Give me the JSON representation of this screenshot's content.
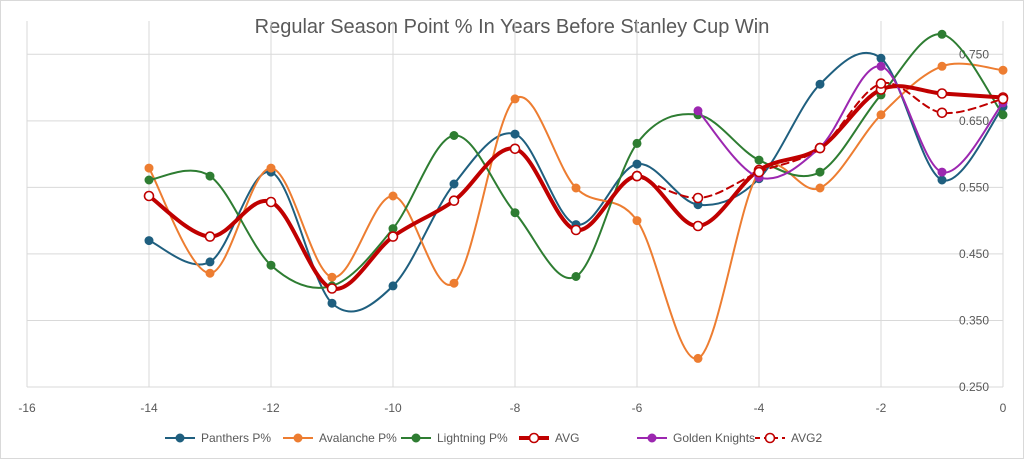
{
  "chart_data": {
    "type": "line",
    "title": "Regular Season Point % In Years Before Stanley Cup Win",
    "xlabel": "",
    "ylabel": "",
    "xlim": [
      -16,
      0
    ],
    "ylim": [
      0.25,
      0.8
    ],
    "x_ticks": [
      "-16",
      "-14",
      "-12",
      "-10",
      "-8",
      "-6",
      "-4",
      "-2",
      "0"
    ],
    "y_ticks": [
      "0.250",
      "0.350",
      "0.450",
      "0.550",
      "0.650",
      "0.750"
    ],
    "grid": "vertical and horizontal",
    "legend_position": "bottom",
    "series": [
      {
        "name": "Panthers P%",
        "color": "#1f5f7f",
        "style": "thin-smooth-filled-markers",
        "points": [
          [
            -14,
            0.47
          ],
          [
            -13,
            0.438
          ],
          [
            -12,
            0.573
          ],
          [
            -11,
            0.376
          ],
          [
            -10,
            0.402
          ],
          [
            -9,
            0.555
          ],
          [
            -8,
            0.63
          ],
          [
            -7,
            0.494
          ],
          [
            -6,
            0.585
          ],
          [
            -5,
            0.524
          ],
          [
            -4,
            0.563
          ],
          [
            -3,
            0.705
          ],
          [
            -2,
            0.744
          ],
          [
            -1,
            0.561
          ],
          [
            0,
            0.671
          ]
        ]
      },
      {
        "name": "Avalanche P%",
        "color": "#ed7d31",
        "style": "thin-smooth-filled-markers",
        "points": [
          [
            -14,
            0.579
          ],
          [
            -13,
            0.421
          ],
          [
            -12,
            0.579
          ],
          [
            -11,
            0.415
          ],
          [
            -10,
            0.537
          ],
          [
            -9,
            0.406
          ],
          [
            -8,
            0.683
          ],
          [
            -7,
            0.549
          ],
          [
            -6,
            0.5
          ],
          [
            -5,
            0.293
          ],
          [
            -4,
            0.573
          ],
          [
            -3,
            0.549
          ],
          [
            -2,
            0.659
          ],
          [
            -1,
            0.732
          ],
          [
            0,
            0.726
          ]
        ]
      },
      {
        "name": "Lightning P%",
        "color": "#2e7d32",
        "style": "thin-smooth-filled-markers",
        "points": [
          [
            -14,
            0.561
          ],
          [
            -13,
            0.567
          ],
          [
            -12,
            0.433
          ],
          [
            -11,
            0.402
          ],
          [
            -10,
            0.488
          ],
          [
            -9,
            0.628
          ],
          [
            -8,
            0.512
          ],
          [
            -7,
            0.416
          ],
          [
            -6,
            0.616
          ],
          [
            -5,
            0.659
          ],
          [
            -4,
            0.591
          ],
          [
            -3,
            0.573
          ],
          [
            -2,
            0.689
          ],
          [
            -1,
            0.78
          ],
          [
            0,
            0.659
          ]
        ]
      },
      {
        "name": "AVG",
        "color": "#c00000",
        "style": "thick-smooth-hollow-markers",
        "points": [
          [
            -14,
            0.537
          ],
          [
            -13,
            0.476
          ],
          [
            -12,
            0.528
          ],
          [
            -11,
            0.398
          ],
          [
            -10,
            0.476
          ],
          [
            -9,
            0.53
          ],
          [
            -8,
            0.608
          ],
          [
            -7,
            0.486
          ],
          [
            -6,
            0.567
          ],
          [
            -5,
            0.492
          ],
          [
            -4,
            0.576
          ],
          [
            -3,
            0.609
          ],
          [
            -2,
            0.697
          ],
          [
            -1,
            0.691
          ],
          [
            0,
            0.685
          ]
        ]
      },
      {
        "name": "Golden Knights",
        "color": "#9c27b0",
        "style": "thin-smooth-filled-markers",
        "points": [
          [
            -5,
            0.665
          ],
          [
            -4,
            0.565
          ],
          [
            -3,
            0.61
          ],
          [
            -2,
            0.732
          ],
          [
            -1,
            0.573
          ],
          [
            0,
            0.677
          ]
        ]
      },
      {
        "name": "AVG2",
        "color": "#c00000",
        "style": "dashed-smooth-hollow-markers",
        "points": [
          [
            -6,
            0.567
          ],
          [
            -5,
            0.534
          ],
          [
            -4,
            0.573
          ],
          [
            -3,
            0.609
          ],
          [
            -2,
            0.706
          ],
          [
            -1,
            0.662
          ],
          [
            0,
            0.683
          ]
        ]
      }
    ]
  }
}
